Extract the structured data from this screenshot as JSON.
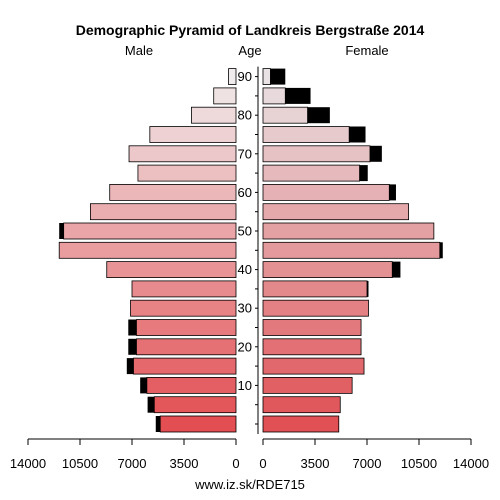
{
  "chart_data": {
    "type": "bar",
    "title": "Demographic Pyramid of Landkreis Bergstraße 2014",
    "left_label": "Male",
    "center_label": "Age",
    "right_label": "Female",
    "footer": "www.iz.sk/RDE715",
    "x_ticks_left": [
      "14000",
      "10500",
      "7000",
      "3500",
      "0"
    ],
    "x_ticks_right": [
      "0",
      "3500",
      "7000",
      "10500",
      "14000"
    ],
    "x_tick_values": [
      14000,
      10500,
      7000,
      3500,
      0
    ],
    "age_tick_labels": [
      "10",
      "20",
      "30",
      "40",
      "50",
      "60",
      "70",
      "80",
      "90"
    ],
    "xlim": [
      0,
      14000
    ],
    "age_groups": [
      "0-4",
      "5-9",
      "10-14",
      "15-19",
      "20-24",
      "25-29",
      "30-34",
      "35-39",
      "40-44",
      "45-49",
      "50-54",
      "55-59",
      "60-64",
      "65-69",
      "70-74",
      "75-79",
      "80-84",
      "85-89",
      "90+"
    ],
    "series": [
      {
        "name": "Male",
        "values": [
          5100,
          5500,
          6000,
          6900,
          6700,
          6700,
          7100,
          7000,
          8700,
          11900,
          11600,
          9800,
          8500,
          6600,
          7200,
          5800,
          3000,
          1500,
          500
        ],
        "excess": [
          300,
          450,
          450,
          450,
          550,
          550,
          0,
          0,
          0,
          0,
          300,
          0,
          0,
          0,
          0,
          0,
          0,
          0,
          0
        ]
      },
      {
        "name": "Female",
        "values": [
          5100,
          5200,
          6000,
          6800,
          6600,
          6600,
          7100,
          7000,
          8700,
          11900,
          11500,
          9800,
          8500,
          6500,
          7200,
          5800,
          3000,
          1500,
          500
        ],
        "excess": [
          0,
          0,
          0,
          0,
          0,
          0,
          0,
          100,
          550,
          200,
          0,
          0,
          450,
          550,
          800,
          1100,
          1500,
          1700,
          1000
        ]
      }
    ]
  }
}
